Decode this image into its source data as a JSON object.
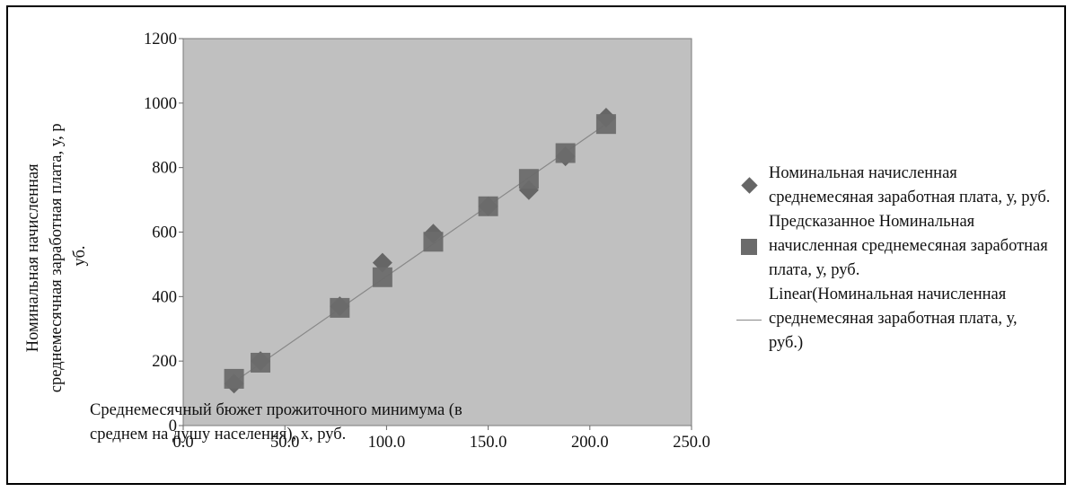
{
  "chart_data": {
    "type": "scatter",
    "ylabel": "Номинальная начисленная среднемесячная заработная плата, у, руб.",
    "xlabel": "Среднемесячный бюжет прожиточного минимума (в среднем на душу населения), х, руб.",
    "xlim": [
      0,
      250
    ],
    "ylim": [
      0,
      1200
    ],
    "x_ticks": [
      "0.0",
      "50.0",
      "100.0",
      "150.0",
      "200.0",
      "250.0"
    ],
    "y_ticks": [
      "0",
      "200",
      "400",
      "600",
      "800",
      "1000",
      "1200"
    ],
    "grid": false,
    "legend_position": "right",
    "series": [
      {
        "name": "Номинальная начисленная среднемесяная заработная плата, у, руб.",
        "marker": "diamond",
        "color": "#666666",
        "points": [
          [
            25,
            130
          ],
          [
            38,
            200
          ],
          [
            77,
            370
          ],
          [
            98,
            505
          ],
          [
            123,
            595
          ],
          [
            150,
            680
          ],
          [
            170,
            730
          ],
          [
            188,
            835
          ],
          [
            208,
            955
          ]
        ]
      },
      {
        "name": "Предсказанное Номинальная начисленная среднемесяная заработная плата, у, руб.",
        "marker": "square",
        "color": "#6b6b6b",
        "points": [
          [
            25,
            145
          ],
          [
            38,
            195
          ],
          [
            77,
            365
          ],
          [
            98,
            460
          ],
          [
            123,
            570
          ],
          [
            150,
            680
          ],
          [
            170,
            765
          ],
          [
            188,
            845
          ],
          [
            208,
            935
          ]
        ]
      },
      {
        "name": "Linear(Номинальная начисленная среднемесяная заработная плата, у, руб.)",
        "type": "line",
        "color": "#888888",
        "points": [
          [
            25,
            135
          ],
          [
            208,
            935
          ]
        ]
      }
    ]
  },
  "legend": [
    {
      "label": "Номинальная начисленная среднемесяная заработная плата, у, руб."
    },
    {
      "label": "Предсказанное Номинальная начисленная среднемесяная заработная плата, у, руб."
    },
    {
      "label": "Linear(Номинальная начисленная среднемесяная заработная плата, у, руб.)"
    }
  ],
  "colors": {
    "plot_background": "#c0c0c0",
    "marker": "#666666"
  }
}
